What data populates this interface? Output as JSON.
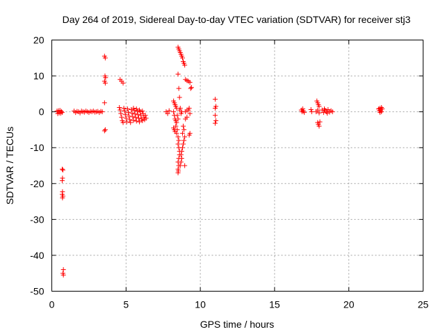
{
  "chart_data": {
    "type": "scatter",
    "title": "Day 264 of 2019, Sidereal Day-to-day VTEC variation (SDTVAR) for receiver stj3",
    "xlabel": "GPS time / hours",
    "ylabel": "SDTVAR / TECUs",
    "xlim": [
      0,
      25
    ],
    "ylim": [
      -50,
      20
    ],
    "xticks": [
      0,
      5,
      10,
      15,
      20,
      25
    ],
    "yticks": [
      -50,
      -40,
      -30,
      -20,
      -10,
      0,
      10,
      20
    ],
    "xtick_labels": [
      "0",
      "5",
      "10",
      "15",
      "20",
      "25"
    ],
    "ytick_labels": [
      "-50",
      "-40",
      "-30",
      "-20",
      "-10",
      "0",
      "10",
      "20"
    ],
    "grid": true,
    "marker": "+",
    "color": "#ff0000",
    "series": [
      {
        "name": "SDTVAR",
        "points": [
          [
            0.35,
            0.2
          ],
          [
            0.4,
            -0.5
          ],
          [
            0.45,
            0.3
          ],
          [
            0.5,
            -0.3
          ],
          [
            0.55,
            0.4
          ],
          [
            0.6,
            -0.4
          ],
          [
            0.65,
            0.1
          ],
          [
            0.7,
            -0.2
          ],
          [
            0.7,
            -16
          ],
          [
            0.75,
            -16.2
          ],
          [
            0.72,
            -18.5
          ],
          [
            0.7,
            -19.2
          ],
          [
            0.72,
            -22.3
          ],
          [
            0.7,
            -23
          ],
          [
            0.72,
            -24
          ],
          [
            0.75,
            -23.5
          ],
          [
            0.78,
            -44
          ],
          [
            0.75,
            -45
          ],
          [
            0.78,
            -45.5
          ],
          [
            1.5,
            0.2
          ],
          [
            1.6,
            -0.2
          ],
          [
            1.7,
            0.1
          ],
          [
            1.8,
            0
          ],
          [
            1.9,
            -0.3
          ],
          [
            2.0,
            0.2
          ],
          [
            2.1,
            0
          ],
          [
            2.2,
            -0.1
          ],
          [
            2.3,
            0.2
          ],
          [
            2.4,
            0
          ],
          [
            2.5,
            -0.2
          ],
          [
            2.6,
            0.1
          ],
          [
            2.7,
            0
          ],
          [
            2.8,
            0.2
          ],
          [
            2.9,
            -0.1
          ],
          [
            3.0,
            0
          ],
          [
            3.1,
            0.1
          ],
          [
            3.2,
            -0.2
          ],
          [
            3.3,
            0.1
          ],
          [
            3.4,
            0
          ],
          [
            3.55,
            15.5
          ],
          [
            3.6,
            15
          ],
          [
            3.58,
            10
          ],
          [
            3.62,
            9.5
          ],
          [
            3.55,
            8.5
          ],
          [
            3.6,
            8
          ],
          [
            3.55,
            2.5
          ],
          [
            3.6,
            -5
          ],
          [
            3.55,
            -5.3
          ],
          [
            4.6,
            9
          ],
          [
            4.7,
            8.5
          ],
          [
            4.8,
            8
          ],
          [
            4.55,
            1.2
          ],
          [
            4.6,
            0.5
          ],
          [
            4.65,
            -0.5
          ],
          [
            4.7,
            -1.5
          ],
          [
            4.75,
            -2.5
          ],
          [
            4.8,
            -3
          ],
          [
            4.85,
            1
          ],
          [
            4.9,
            0.2
          ],
          [
            4.95,
            -0.8
          ],
          [
            5.0,
            -1.8
          ],
          [
            5.05,
            -2.8
          ],
          [
            5.1,
            0.8
          ],
          [
            5.15,
            -0.2
          ],
          [
            5.2,
            -1.2
          ],
          [
            5.25,
            -2.2
          ],
          [
            5.3,
            -3
          ],
          [
            5.35,
            0.6
          ],
          [
            5.4,
            -0.4
          ],
          [
            5.45,
            -1.4
          ],
          [
            5.5,
            -2.4
          ],
          [
            5.55,
            0.4
          ],
          [
            5.6,
            -0.6
          ],
          [
            5.65,
            -1.6
          ],
          [
            5.7,
            -2.6
          ],
          [
            5.75,
            0.2
          ],
          [
            5.8,
            -0.8
          ],
          [
            5.85,
            -1.8
          ],
          [
            5.9,
            -2.8
          ],
          [
            5.95,
            0
          ],
          [
            6.0,
            -1
          ],
          [
            6.05,
            -2
          ],
          [
            6.1,
            -2.5
          ],
          [
            6.15,
            -0.5
          ],
          [
            6.2,
            -1.5
          ],
          [
            6.25,
            -2.2
          ],
          [
            6.3,
            -1
          ],
          [
            6.35,
            -1.8
          ],
          [
            5.5,
            1
          ],
          [
            5.7,
            0.8
          ],
          [
            5.9,
            0.5
          ],
          [
            6.1,
            0.2
          ],
          [
            7.7,
            0
          ],
          [
            7.8,
            -0.5
          ],
          [
            7.9,
            0.3
          ],
          [
            8.2,
            3
          ],
          [
            8.25,
            2.5
          ],
          [
            8.3,
            2
          ],
          [
            8.35,
            1.5
          ],
          [
            8.4,
            1
          ],
          [
            8.2,
            0
          ],
          [
            8.25,
            -1
          ],
          [
            8.3,
            -2
          ],
          [
            8.35,
            -2.5
          ],
          [
            8.4,
            -3
          ],
          [
            8.2,
            -4.5
          ],
          [
            8.25,
            -5
          ],
          [
            8.3,
            -5.5
          ],
          [
            8.35,
            -4
          ],
          [
            8.4,
            -6
          ],
          [
            8.45,
            -5
          ],
          [
            8.5,
            -7
          ],
          [
            8.55,
            -8
          ],
          [
            8.5,
            -9
          ],
          [
            8.55,
            -10
          ],
          [
            8.6,
            -11
          ],
          [
            8.6,
            -12
          ],
          [
            8.55,
            -13
          ],
          [
            8.5,
            -14
          ],
          [
            8.55,
            -15
          ],
          [
            8.5,
            -16
          ],
          [
            8.52,
            -16.5
          ],
          [
            8.5,
            -17
          ],
          [
            8.65,
            -15
          ],
          [
            8.7,
            -14
          ],
          [
            8.75,
            -13
          ],
          [
            8.7,
            -12
          ],
          [
            8.75,
            -11
          ],
          [
            8.8,
            -10
          ],
          [
            8.85,
            -9
          ],
          [
            8.9,
            -8
          ],
          [
            8.95,
            -7
          ],
          [
            8.9,
            -5
          ],
          [
            8.85,
            -4
          ],
          [
            8.8,
            -6
          ],
          [
            8.95,
            -15
          ],
          [
            8.5,
            18
          ],
          [
            8.55,
            17.5
          ],
          [
            8.6,
            17
          ],
          [
            8.65,
            16.5
          ],
          [
            8.7,
            16
          ],
          [
            8.75,
            15.5
          ],
          [
            8.8,
            15
          ],
          [
            8.85,
            14
          ],
          [
            8.9,
            13.5
          ],
          [
            8.95,
            13
          ],
          [
            8.5,
            10.5
          ],
          [
            8.55,
            6.5
          ],
          [
            8.6,
            4
          ],
          [
            8.45,
            -1
          ],
          [
            8.5,
            -2
          ],
          [
            8.6,
            0.5
          ],
          [
            8.65,
            1
          ],
          [
            8.7,
            -0.5
          ],
          [
            8.75,
            0
          ],
          [
            9.0,
            9
          ],
          [
            9.1,
            8.7
          ],
          [
            9.2,
            8.5
          ],
          [
            9.3,
            8.2
          ],
          [
            9.35,
            6.5
          ],
          [
            9.4,
            6.8
          ],
          [
            9.3,
            -6
          ],
          [
            9.25,
            -6.5
          ],
          [
            9.2,
            0.5
          ],
          [
            9.3,
            -0.5
          ],
          [
            9.25,
            1
          ],
          [
            9.0,
            -2
          ],
          [
            9.1,
            -1.5
          ],
          [
            9.0,
            0
          ],
          [
            9.1,
            0.5
          ],
          [
            11.0,
            3.5
          ],
          [
            11.05,
            1.5
          ],
          [
            11.0,
            1
          ],
          [
            11.0,
            -1
          ],
          [
            11.05,
            -2.5
          ],
          [
            11.0,
            -3.2
          ],
          [
            16.8,
            0.5
          ],
          [
            16.85,
            0
          ],
          [
            16.9,
            0.8
          ],
          [
            16.95,
            0.2
          ],
          [
            17.0,
            -0.2
          ],
          [
            17.45,
            0.6
          ],
          [
            17.5,
            0
          ],
          [
            17.85,
            3
          ],
          [
            17.9,
            2.5
          ],
          [
            17.95,
            2
          ],
          [
            18.0,
            1.5
          ],
          [
            17.9,
            -3
          ],
          [
            17.95,
            -3.5
          ],
          [
            18.0,
            -4
          ],
          [
            18.05,
            -2.8
          ],
          [
            17.8,
            0
          ],
          [
            17.9,
            0.5
          ],
          [
            18.0,
            -0.3
          ],
          [
            18.2,
            0.5
          ],
          [
            18.3,
            -0.2
          ],
          [
            18.4,
            0.4
          ],
          [
            18.5,
            0
          ],
          [
            18.6,
            0.6
          ],
          [
            18.7,
            -0.1
          ],
          [
            18.8,
            0.3
          ],
          [
            18.9,
            0
          ],
          [
            18.35,
            0.8
          ],
          [
            18.55,
            -0.4
          ],
          [
            22.0,
            0.8
          ],
          [
            22.05,
            0.3
          ],
          [
            22.1,
            1
          ],
          [
            22.15,
            0.5
          ],
          [
            22.2,
            0
          ],
          [
            22.25,
            0.8
          ],
          [
            22.1,
            -0.2
          ],
          [
            22.2,
            1.2
          ]
        ]
      }
    ]
  }
}
